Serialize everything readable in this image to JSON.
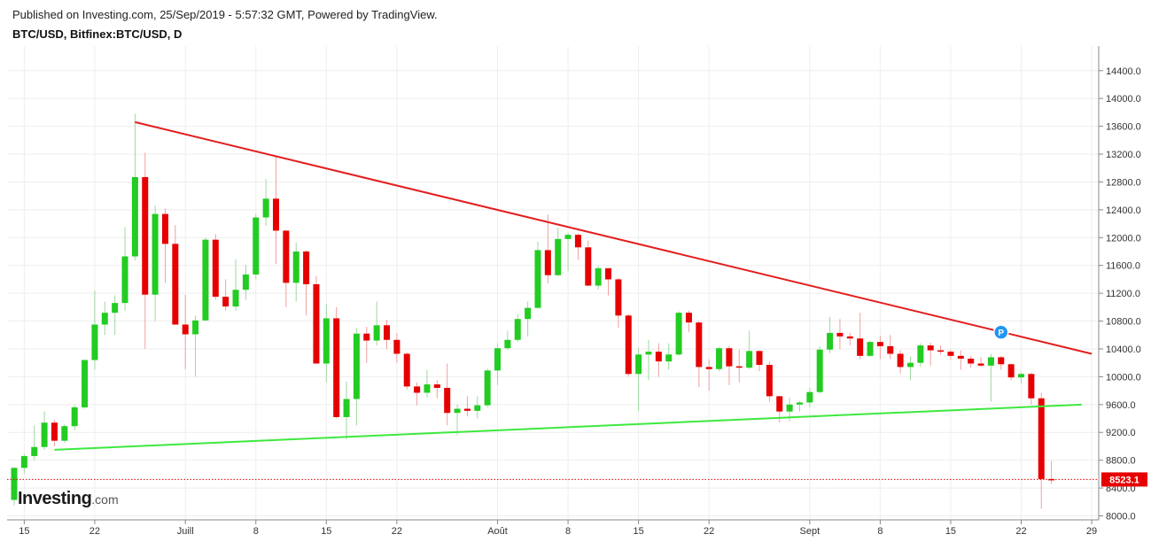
{
  "header": {
    "published": "Published on Investing.com, 25/Sep/2019 - 5:57:32 GMT, Powered by TradingView.",
    "symbol": "BTC/USD, Bitfinex:BTC/USD, D"
  },
  "logo": {
    "main": "Investing",
    "domain": ".com"
  },
  "colors": {
    "up": "#22cc22",
    "down": "#e60000",
    "resistance": "#e31e1e",
    "support": "#3ee83e",
    "grid": "#eeeeee",
    "marker": "#2196f3",
    "last_price": "#e60000"
  },
  "marker": {
    "label": "P"
  },
  "chart_data": {
    "type": "candlestick",
    "title": "BTC/USD, Bitfinex:BTC/USD, D",
    "ylim": [
      7800,
      14500
    ],
    "y_ticks": [
      "14400.0",
      "14000.0",
      "13600.0",
      "13200.0",
      "12800.0",
      "12400.0",
      "12000.0",
      "11600.0",
      "11200.0",
      "10800.0",
      "10400.0",
      "10000.0",
      "9600.0",
      "9200.0",
      "8800.0",
      "8400.0",
      "8000.0"
    ],
    "x_ticks": [
      {
        "label": "15",
        "date": "2019-06-15"
      },
      {
        "label": "22",
        "date": "2019-06-22"
      },
      {
        "label": "Juill",
        "date": "2019-07-01"
      },
      {
        "label": "8",
        "date": "2019-07-08"
      },
      {
        "label": "15",
        "date": "2019-07-15"
      },
      {
        "label": "22",
        "date": "2019-07-22"
      },
      {
        "label": "Août",
        "date": "2019-08-01"
      },
      {
        "label": "8",
        "date": "2019-08-08"
      },
      {
        "label": "15",
        "date": "2019-08-15"
      },
      {
        "label": "22",
        "date": "2019-08-22"
      },
      {
        "label": "Sept",
        "date": "2019-09-01"
      },
      {
        "label": "8",
        "date": "2019-09-08"
      },
      {
        "label": "15",
        "date": "2019-09-15"
      },
      {
        "label": "22",
        "date": "2019-09-22"
      },
      {
        "label": "29",
        "date": "2019-09-29"
      }
    ],
    "x_range": [
      "2019-06-14",
      "2019-09-30"
    ],
    "last_price": 8523.1,
    "last_price_label": "8523.1",
    "candles": [
      {
        "date": "2019-06-14",
        "o": 8230,
        "h": 8700,
        "l": 8150,
        "c": 8690
      },
      {
        "date": "2019-06-15",
        "o": 8690,
        "h": 8890,
        "l": 8610,
        "c": 8860
      },
      {
        "date": "2019-06-16",
        "o": 8860,
        "h": 9300,
        "l": 8800,
        "c": 8990
      },
      {
        "date": "2019-06-17",
        "o": 8990,
        "h": 9500,
        "l": 8950,
        "c": 9340
      },
      {
        "date": "2019-06-18",
        "o": 9340,
        "h": 9380,
        "l": 9000,
        "c": 9080
      },
      {
        "date": "2019-06-19",
        "o": 9080,
        "h": 9320,
        "l": 9050,
        "c": 9290
      },
      {
        "date": "2019-06-20",
        "o": 9290,
        "h": 9600,
        "l": 9230,
        "c": 9560
      },
      {
        "date": "2019-06-21",
        "o": 9560,
        "h": 10250,
        "l": 9540,
        "c": 10240
      },
      {
        "date": "2019-06-22",
        "o": 10240,
        "h": 11240,
        "l": 10100,
        "c": 10750
      },
      {
        "date": "2019-06-23",
        "o": 10750,
        "h": 11080,
        "l": 10600,
        "c": 10920
      },
      {
        "date": "2019-06-24",
        "o": 10920,
        "h": 11170,
        "l": 10600,
        "c": 11060
      },
      {
        "date": "2019-06-25",
        "o": 11060,
        "h": 12150,
        "l": 10950,
        "c": 11730
      },
      {
        "date": "2019-06-26",
        "o": 11730,
        "h": 13780,
        "l": 11670,
        "c": 12870
      },
      {
        "date": "2019-06-27",
        "o": 12870,
        "h": 13220,
        "l": 10400,
        "c": 11180
      },
      {
        "date": "2019-06-28",
        "o": 11180,
        "h": 12460,
        "l": 10800,
        "c": 12340
      },
      {
        "date": "2019-06-29",
        "o": 12340,
        "h": 12420,
        "l": 11350,
        "c": 11910
      },
      {
        "date": "2019-06-30",
        "o": 11910,
        "h": 12180,
        "l": 10800,
        "c": 10750
      },
      {
        "date": "2019-07-01",
        "o": 10750,
        "h": 11180,
        "l": 10110,
        "c": 10610
      },
      {
        "date": "2019-07-02",
        "o": 10610,
        "h": 10880,
        "l": 10000,
        "c": 10810
      },
      {
        "date": "2019-07-03",
        "o": 10810,
        "h": 12000,
        "l": 10810,
        "c": 11970
      },
      {
        "date": "2019-07-04",
        "o": 11970,
        "h": 12050,
        "l": 11110,
        "c": 11150
      },
      {
        "date": "2019-07-05",
        "o": 11150,
        "h": 11400,
        "l": 10950,
        "c": 11010
      },
      {
        "date": "2019-07-06",
        "o": 11010,
        "h": 11690,
        "l": 10950,
        "c": 11250
      },
      {
        "date": "2019-07-07",
        "o": 11250,
        "h": 11610,
        "l": 11100,
        "c": 11470
      },
      {
        "date": "2019-07-08",
        "o": 11470,
        "h": 12340,
        "l": 11400,
        "c": 12290
      },
      {
        "date": "2019-07-09",
        "o": 12290,
        "h": 12840,
        "l": 12170,
        "c": 12560
      },
      {
        "date": "2019-07-10",
        "o": 12560,
        "h": 13180,
        "l": 11620,
        "c": 12100
      },
      {
        "date": "2019-07-11",
        "o": 12100,
        "h": 12110,
        "l": 11000,
        "c": 11350
      },
      {
        "date": "2019-07-12",
        "o": 11350,
        "h": 11930,
        "l": 11080,
        "c": 11800
      },
      {
        "date": "2019-07-13",
        "o": 11800,
        "h": 11820,
        "l": 10880,
        "c": 11330
      },
      {
        "date": "2019-07-14",
        "o": 11330,
        "h": 11450,
        "l": 10200,
        "c": 10190
      },
      {
        "date": "2019-07-15",
        "o": 10190,
        "h": 11050,
        "l": 9920,
        "c": 10840
      },
      {
        "date": "2019-07-16",
        "o": 10840,
        "h": 11000,
        "l": 9400,
        "c": 9420
      },
      {
        "date": "2019-07-17",
        "o": 9420,
        "h": 9930,
        "l": 9100,
        "c": 9680
      },
      {
        "date": "2019-07-18",
        "o": 9680,
        "h": 10700,
        "l": 9300,
        "c": 10620
      },
      {
        "date": "2019-07-19",
        "o": 10620,
        "h": 10720,
        "l": 10200,
        "c": 10520
      },
      {
        "date": "2019-07-20",
        "o": 10520,
        "h": 11080,
        "l": 10450,
        "c": 10740
      },
      {
        "date": "2019-07-21",
        "o": 10740,
        "h": 10820,
        "l": 10400,
        "c": 10530
      },
      {
        "date": "2019-07-22",
        "o": 10530,
        "h": 10630,
        "l": 10200,
        "c": 10330
      },
      {
        "date": "2019-07-23",
        "o": 10330,
        "h": 10350,
        "l": 9820,
        "c": 9860
      },
      {
        "date": "2019-07-24",
        "o": 9860,
        "h": 9920,
        "l": 9590,
        "c": 9770
      },
      {
        "date": "2019-07-25",
        "o": 9770,
        "h": 10100,
        "l": 9700,
        "c": 9890
      },
      {
        "date": "2019-07-26",
        "o": 9890,
        "h": 9950,
        "l": 9690,
        "c": 9840
      },
      {
        "date": "2019-07-27",
        "o": 9840,
        "h": 10190,
        "l": 9300,
        "c": 9480
      },
      {
        "date": "2019-07-28",
        "o": 9480,
        "h": 9600,
        "l": 9160,
        "c": 9540
      },
      {
        "date": "2019-07-29",
        "o": 9540,
        "h": 9720,
        "l": 9430,
        "c": 9510
      },
      {
        "date": "2019-07-30",
        "o": 9510,
        "h": 9720,
        "l": 9400,
        "c": 9590
      },
      {
        "date": "2019-07-31",
        "o": 9590,
        "h": 10120,
        "l": 9560,
        "c": 10090
      },
      {
        "date": "2019-08-01",
        "o": 10090,
        "h": 10480,
        "l": 9880,
        "c": 10410
      },
      {
        "date": "2019-08-02",
        "o": 10410,
        "h": 10660,
        "l": 10390,
        "c": 10530
      },
      {
        "date": "2019-08-03",
        "o": 10530,
        "h": 10900,
        "l": 10500,
        "c": 10830
      },
      {
        "date": "2019-08-04",
        "o": 10830,
        "h": 11080,
        "l": 10580,
        "c": 10990
      },
      {
        "date": "2019-08-05",
        "o": 10990,
        "h": 11940,
        "l": 10980,
        "c": 11820
      },
      {
        "date": "2019-08-06",
        "o": 11820,
        "h": 12330,
        "l": 11340,
        "c": 11460
      },
      {
        "date": "2019-08-07",
        "o": 11460,
        "h": 12140,
        "l": 11450,
        "c": 11980
      },
      {
        "date": "2019-08-08",
        "o": 11980,
        "h": 12070,
        "l": 11520,
        "c": 12040
      },
      {
        "date": "2019-08-09",
        "o": 12040,
        "h": 12060,
        "l": 11680,
        "c": 11860
      },
      {
        "date": "2019-08-10",
        "o": 11860,
        "h": 11960,
        "l": 11300,
        "c": 11310
      },
      {
        "date": "2019-08-11",
        "o": 11310,
        "h": 11600,
        "l": 11250,
        "c": 11560
      },
      {
        "date": "2019-08-12",
        "o": 11560,
        "h": 11560,
        "l": 11170,
        "c": 11400
      },
      {
        "date": "2019-08-13",
        "o": 11400,
        "h": 11420,
        "l": 10700,
        "c": 10880
      },
      {
        "date": "2019-08-14",
        "o": 10880,
        "h": 10900,
        "l": 10000,
        "c": 10040
      },
      {
        "date": "2019-08-15",
        "o": 10040,
        "h": 10420,
        "l": 9510,
        "c": 10320
      },
      {
        "date": "2019-08-16",
        "o": 10320,
        "h": 10530,
        "l": 9950,
        "c": 10360
      },
      {
        "date": "2019-08-17",
        "o": 10360,
        "h": 10480,
        "l": 10000,
        "c": 10220
      },
      {
        "date": "2019-08-18",
        "o": 10220,
        "h": 10480,
        "l": 10100,
        "c": 10320
      },
      {
        "date": "2019-08-19",
        "o": 10320,
        "h": 10940,
        "l": 10300,
        "c": 10920
      },
      {
        "date": "2019-08-20",
        "o": 10920,
        "h": 10950,
        "l": 10640,
        "c": 10780
      },
      {
        "date": "2019-08-21",
        "o": 10780,
        "h": 10800,
        "l": 9850,
        "c": 10140
      },
      {
        "date": "2019-08-22",
        "o": 10140,
        "h": 10250,
        "l": 9800,
        "c": 10110
      },
      {
        "date": "2019-08-23",
        "o": 10110,
        "h": 10430,
        "l": 10080,
        "c": 10410
      },
      {
        "date": "2019-08-24",
        "o": 10410,
        "h": 10440,
        "l": 9880,
        "c": 10150
      },
      {
        "date": "2019-08-25",
        "o": 10150,
        "h": 10390,
        "l": 9920,
        "c": 10130
      },
      {
        "date": "2019-08-26",
        "o": 10130,
        "h": 10660,
        "l": 10110,
        "c": 10370
      },
      {
        "date": "2019-08-27",
        "o": 10370,
        "h": 10380,
        "l": 10080,
        "c": 10170
      },
      {
        "date": "2019-08-28",
        "o": 10170,
        "h": 10220,
        "l": 9640,
        "c": 9720
      },
      {
        "date": "2019-08-29",
        "o": 9720,
        "h": 9730,
        "l": 9340,
        "c": 9500
      },
      {
        "date": "2019-08-30",
        "o": 9500,
        "h": 9700,
        "l": 9360,
        "c": 9600
      },
      {
        "date": "2019-08-31",
        "o": 9600,
        "h": 9650,
        "l": 9500,
        "c": 9630
      },
      {
        "date": "2019-09-01",
        "o": 9630,
        "h": 9840,
        "l": 9560,
        "c": 9780
      },
      {
        "date": "2019-09-02",
        "o": 9780,
        "h": 10440,
        "l": 9760,
        "c": 10390
      },
      {
        "date": "2019-09-03",
        "o": 10390,
        "h": 10860,
        "l": 10340,
        "c": 10630
      },
      {
        "date": "2019-09-04",
        "o": 10630,
        "h": 10830,
        "l": 10400,
        "c": 10580
      },
      {
        "date": "2019-09-05",
        "o": 10580,
        "h": 10630,
        "l": 10450,
        "c": 10550
      },
      {
        "date": "2019-09-06",
        "o": 10550,
        "h": 10920,
        "l": 10250,
        "c": 10300
      },
      {
        "date": "2019-09-07",
        "o": 10300,
        "h": 10520,
        "l": 10290,
        "c": 10500
      },
      {
        "date": "2019-09-08",
        "o": 10500,
        "h": 10590,
        "l": 10250,
        "c": 10440
      },
      {
        "date": "2019-09-09",
        "o": 10440,
        "h": 10600,
        "l": 10250,
        "c": 10330
      },
      {
        "date": "2019-09-10",
        "o": 10330,
        "h": 10380,
        "l": 10050,
        "c": 10140
      },
      {
        "date": "2019-09-11",
        "o": 10140,
        "h": 10290,
        "l": 9950,
        "c": 10200
      },
      {
        "date": "2019-09-12",
        "o": 10200,
        "h": 10480,
        "l": 10150,
        "c": 10450
      },
      {
        "date": "2019-09-13",
        "o": 10450,
        "h": 10490,
        "l": 10160,
        "c": 10380
      },
      {
        "date": "2019-09-14",
        "o": 10380,
        "h": 10450,
        "l": 10320,
        "c": 10360
      },
      {
        "date": "2019-09-15",
        "o": 10360,
        "h": 10390,
        "l": 10240,
        "c": 10300
      },
      {
        "date": "2019-09-16",
        "o": 10300,
        "h": 10380,
        "l": 10100,
        "c": 10260
      },
      {
        "date": "2019-09-17",
        "o": 10260,
        "h": 10300,
        "l": 10130,
        "c": 10190
      },
      {
        "date": "2019-09-18",
        "o": 10190,
        "h": 10280,
        "l": 10140,
        "c": 10160
      },
      {
        "date": "2019-09-19",
        "o": 10160,
        "h": 10330,
        "l": 9640,
        "c": 10280
      },
      {
        "date": "2019-09-20",
        "o": 10280,
        "h": 10300,
        "l": 10100,
        "c": 10180
      },
      {
        "date": "2019-09-21",
        "o": 10180,
        "h": 10190,
        "l": 9950,
        "c": 9990
      },
      {
        "date": "2019-09-22",
        "o": 9990,
        "h": 10060,
        "l": 9900,
        "c": 10040
      },
      {
        "date": "2019-09-23",
        "o": 10040,
        "h": 10060,
        "l": 9600,
        "c": 9690
      },
      {
        "date": "2019-09-24",
        "o": 9690,
        "h": 9770,
        "l": 8100,
        "c": 8530
      },
      {
        "date": "2019-09-25",
        "o": 8530,
        "h": 8790,
        "l": 8460,
        "c": 8523.1
      }
    ],
    "trendlines": [
      {
        "name": "resistance",
        "from": {
          "date": "2019-06-26",
          "value": 13660
        },
        "to": {
          "date": "2019-09-29",
          "value": 10330
        }
      },
      {
        "name": "support",
        "from": {
          "date": "2019-06-18",
          "value": 8950
        },
        "to": {
          "date": "2019-09-28",
          "value": 9600
        }
      }
    ],
    "marker_point": {
      "date": "2019-09-20",
      "value": 10640
    }
  }
}
